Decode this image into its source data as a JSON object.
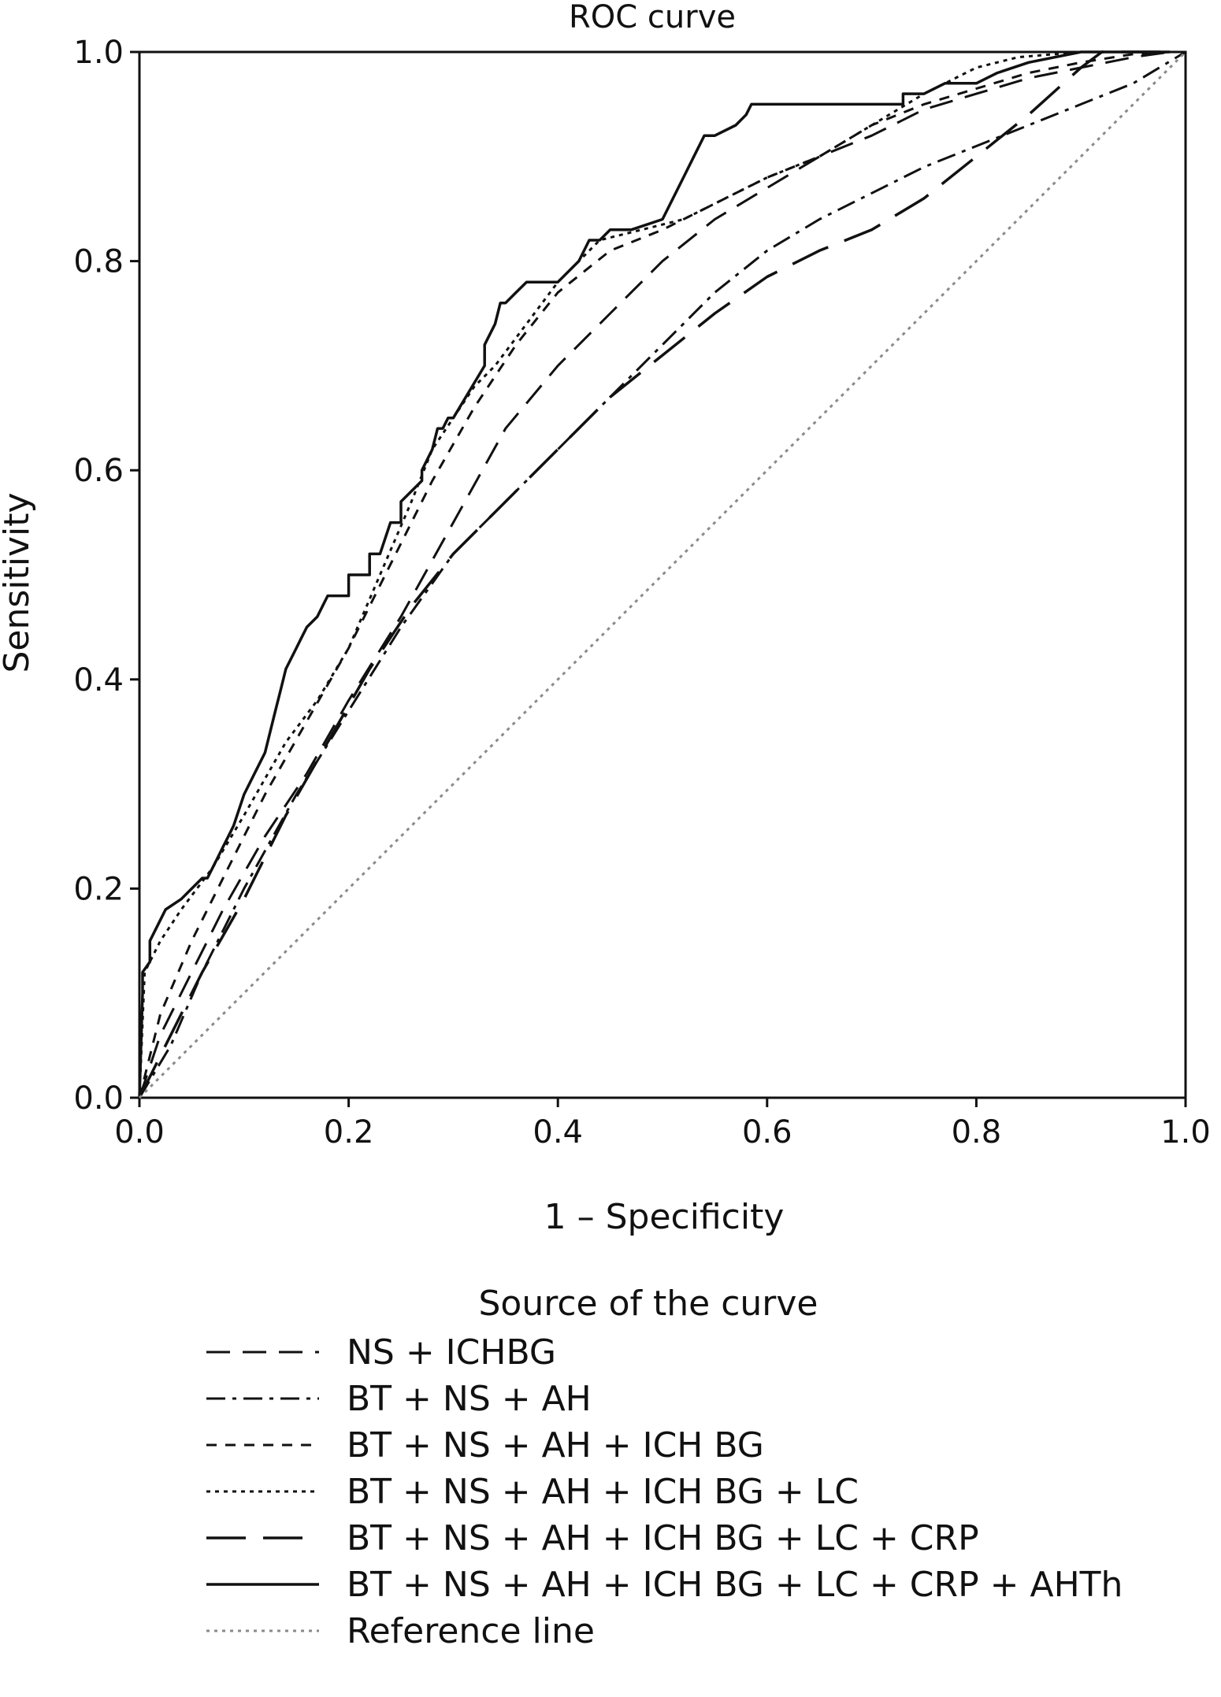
{
  "chart_data": {
    "type": "line",
    "title": "ROC curve",
    "xlabel": "1 – Specificity",
    "ylabel": "Sensitivity",
    "xlim": [
      0,
      1
    ],
    "ylim": [
      0,
      1
    ],
    "x_ticks": [
      "0.0",
      "0.2",
      "0.4",
      "0.6",
      "0.8",
      "1.0"
    ],
    "y_ticks": [
      "0.0",
      "0.2",
      "0.4",
      "0.6",
      "0.8",
      "1.0"
    ],
    "grid": false,
    "legend_title": "Source of the curve",
    "legend_position": "bottom",
    "series": [
      {
        "name": "NS + ICHBG",
        "style": "dash-medium",
        "color": "#111111",
        "x": [
          0.0,
          0.02,
          0.05,
          0.08,
          0.12,
          0.16,
          0.2,
          0.25,
          0.3,
          0.35,
          0.4,
          0.45,
          0.5,
          0.55,
          0.6,
          0.65,
          0.7,
          0.75,
          0.8,
          0.85,
          0.9,
          0.95,
          0.985
        ],
        "y": [
          0.0,
          0.06,
          0.12,
          0.18,
          0.25,
          0.31,
          0.38,
          0.46,
          0.55,
          0.64,
          0.7,
          0.75,
          0.8,
          0.84,
          0.87,
          0.9,
          0.92,
          0.945,
          0.96,
          0.975,
          0.985,
          0.995,
          1.0
        ]
      },
      {
        "name": "BT + NS + AH",
        "style": "dash-dot",
        "color": "#111111",
        "x": [
          0.0,
          0.03,
          0.06,
          0.1,
          0.15,
          0.2,
          0.25,
          0.3,
          0.35,
          0.4,
          0.45,
          0.5,
          0.55,
          0.6,
          0.65,
          0.7,
          0.75,
          0.8,
          0.85,
          0.9,
          0.95,
          1.0
        ],
        "y": [
          0.0,
          0.05,
          0.12,
          0.2,
          0.29,
          0.37,
          0.45,
          0.52,
          0.57,
          0.62,
          0.67,
          0.72,
          0.77,
          0.81,
          0.84,
          0.865,
          0.89,
          0.91,
          0.93,
          0.95,
          0.97,
          1.0
        ]
      },
      {
        "name": "BT + NS + AH + ICH BG",
        "style": "dash-short",
        "color": "#111111",
        "x": [
          0.0,
          0.02,
          0.05,
          0.08,
          0.12,
          0.16,
          0.2,
          0.24,
          0.28,
          0.32,
          0.36,
          0.4,
          0.45,
          0.5,
          0.55,
          0.6,
          0.65,
          0.7,
          0.75,
          0.8,
          0.85,
          0.9,
          0.95,
          0.985
        ],
        "y": [
          0.0,
          0.08,
          0.15,
          0.21,
          0.29,
          0.36,
          0.43,
          0.51,
          0.59,
          0.66,
          0.72,
          0.77,
          0.81,
          0.83,
          0.855,
          0.88,
          0.9,
          0.93,
          0.95,
          0.965,
          0.98,
          0.99,
          0.998,
          1.0
        ]
      },
      {
        "name": "BT + NS + AH + ICH BG + LC",
        "style": "dotted",
        "color": "#111111",
        "x": [
          0.0,
          0.005,
          0.02,
          0.04,
          0.07,
          0.1,
          0.14,
          0.17,
          0.2,
          0.23,
          0.26,
          0.28,
          0.3,
          0.32,
          0.34,
          0.37,
          0.4,
          0.44,
          0.48,
          0.52,
          0.56,
          0.6,
          0.65,
          0.7,
          0.75,
          0.8,
          0.84,
          0.9,
          0.95,
          0.985
        ],
        "y": [
          0.0,
          0.12,
          0.15,
          0.18,
          0.22,
          0.27,
          0.34,
          0.38,
          0.43,
          0.5,
          0.57,
          0.62,
          0.65,
          0.68,
          0.7,
          0.74,
          0.78,
          0.82,
          0.83,
          0.84,
          0.86,
          0.88,
          0.9,
          0.93,
          0.96,
          0.985,
          0.995,
          1.0,
          1.0,
          1.0
        ]
      },
      {
        "name": "BT + NS + AH + ICH BG + LC + CRP",
        "style": "dash-long",
        "color": "#111111",
        "x": [
          0.0,
          0.03,
          0.06,
          0.1,
          0.14,
          0.18,
          0.22,
          0.26,
          0.3,
          0.35,
          0.4,
          0.45,
          0.5,
          0.55,
          0.6,
          0.65,
          0.7,
          0.75,
          0.8,
          0.85,
          0.9,
          0.92,
          0.985
        ],
        "y": [
          0.0,
          0.06,
          0.12,
          0.19,
          0.27,
          0.34,
          0.41,
          0.47,
          0.52,
          0.57,
          0.62,
          0.67,
          0.71,
          0.75,
          0.785,
          0.81,
          0.83,
          0.86,
          0.9,
          0.94,
          0.985,
          1.0,
          1.0
        ]
      },
      {
        "name": "BT + NS + AH + ICH BG + LC + CRP + AHTh",
        "style": "solid",
        "color": "#111111",
        "x": [
          0.0,
          0.003,
          0.003,
          0.01,
          0.01,
          0.02,
          0.025,
          0.04,
          0.05,
          0.06,
          0.065,
          0.07,
          0.075,
          0.08,
          0.085,
          0.09,
          0.1,
          0.11,
          0.12,
          0.125,
          0.13,
          0.135,
          0.14,
          0.15,
          0.155,
          0.16,
          0.17,
          0.175,
          0.18,
          0.185,
          0.2,
          0.2,
          0.22,
          0.22,
          0.23,
          0.24,
          0.24,
          0.25,
          0.25,
          0.27,
          0.27,
          0.28,
          0.285,
          0.29,
          0.295,
          0.3,
          0.33,
          0.33,
          0.34,
          0.345,
          0.35,
          0.36,
          0.37,
          0.38,
          0.385,
          0.39,
          0.4,
          0.42,
          0.43,
          0.44,
          0.45,
          0.47,
          0.5,
          0.52,
          0.53,
          0.54,
          0.55,
          0.57,
          0.58,
          0.585,
          0.59,
          0.6,
          0.73,
          0.73,
          0.75,
          0.77,
          0.78,
          0.8,
          0.82,
          0.85,
          0.9,
          0.92,
          0.985
        ],
        "y": [
          0.0,
          0.1,
          0.12,
          0.13,
          0.15,
          0.17,
          0.18,
          0.19,
          0.2,
          0.21,
          0.21,
          0.22,
          0.23,
          0.24,
          0.25,
          0.26,
          0.29,
          0.31,
          0.33,
          0.35,
          0.37,
          0.39,
          0.41,
          0.43,
          0.44,
          0.45,
          0.46,
          0.47,
          0.48,
          0.48,
          0.48,
          0.5,
          0.5,
          0.52,
          0.52,
          0.55,
          0.55,
          0.55,
          0.57,
          0.59,
          0.6,
          0.62,
          0.64,
          0.64,
          0.65,
          0.65,
          0.7,
          0.72,
          0.74,
          0.76,
          0.76,
          0.77,
          0.78,
          0.78,
          0.78,
          0.78,
          0.78,
          0.8,
          0.82,
          0.82,
          0.83,
          0.83,
          0.84,
          0.88,
          0.9,
          0.92,
          0.92,
          0.93,
          0.94,
          0.95,
          0.95,
          0.95,
          0.95,
          0.96,
          0.96,
          0.97,
          0.97,
          0.97,
          0.98,
          0.99,
          1.0,
          1.0,
          1.0
        ]
      },
      {
        "name": "Reference line",
        "style": "dotted-gray",
        "color": "#8a8a8a",
        "x": [
          0,
          1
        ],
        "y": [
          0,
          1
        ]
      }
    ]
  }
}
